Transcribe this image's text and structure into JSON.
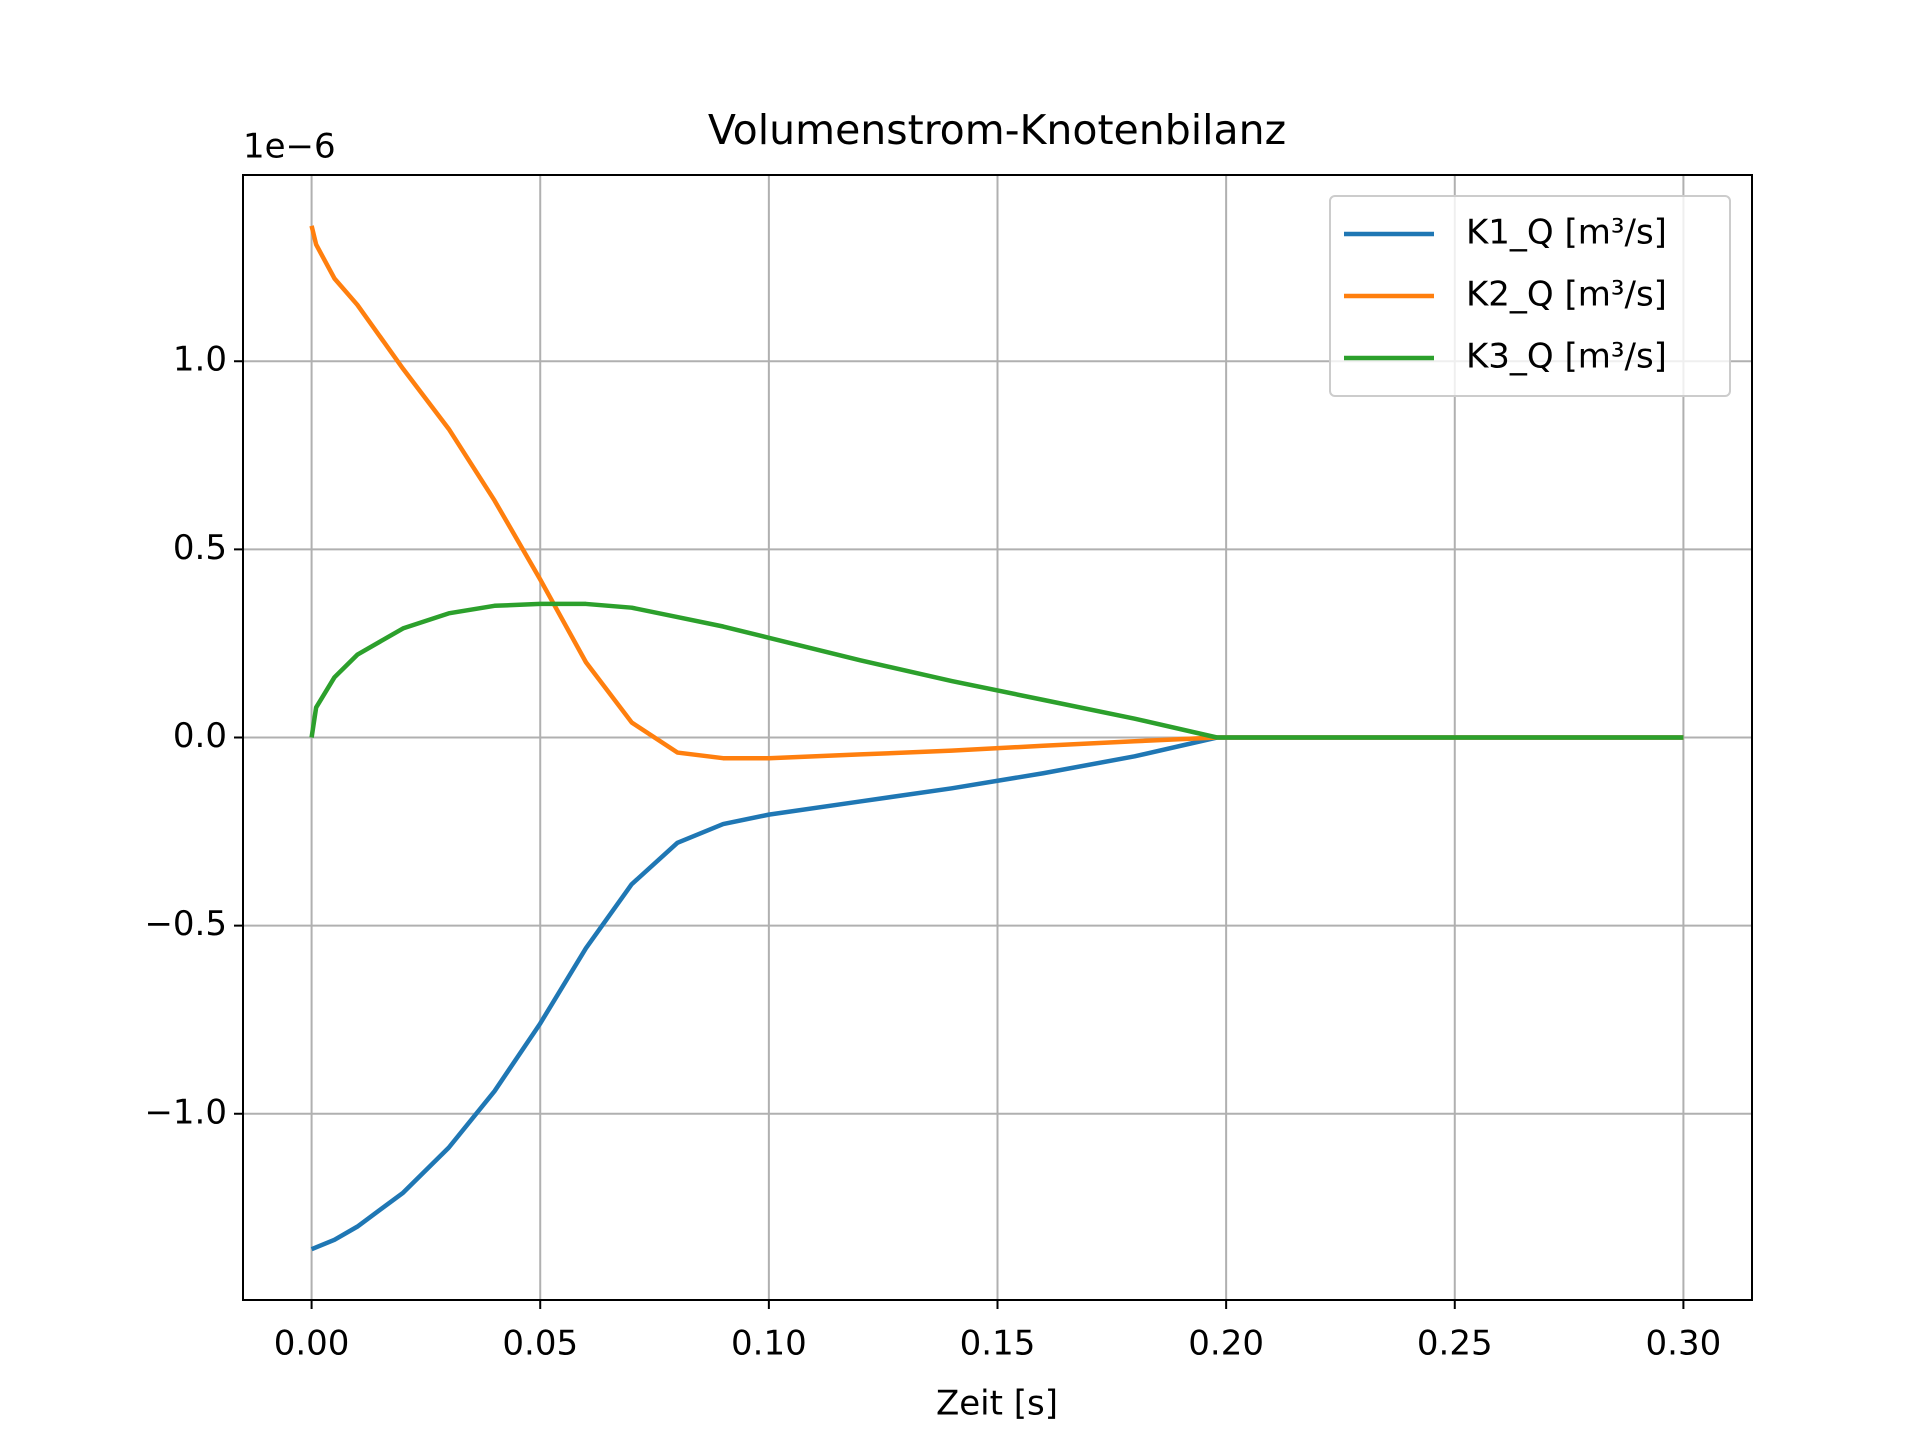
{
  "chart_data": {
    "type": "line",
    "title": "Volumenstrom-Knotenbilanz",
    "x_label": "Zeit [s]",
    "y_offset_label": "1e−6",
    "x": [
      0,
      0.001,
      0.005,
      0.01,
      0.02,
      0.03,
      0.04,
      0.05,
      0.06,
      0.07,
      0.08,
      0.09,
      0.1,
      0.12,
      0.14,
      0.16,
      0.18,
      0.198,
      0.22,
      0.25,
      0.3
    ],
    "series": [
      {
        "name": "K1_Q [m³/s]",
        "color": "#1f77b4",
        "values": [
          -1.36,
          -1.355,
          -1.335,
          -1.3,
          -1.21,
          -1.09,
          -0.94,
          -0.76,
          -0.56,
          -0.39,
          -0.28,
          -0.23,
          -0.205,
          -0.17,
          -0.135,
          -0.095,
          -0.05,
          0,
          0,
          0,
          0
        ]
      },
      {
        "name": "K2_Q [m³/s]",
        "color": "#ff7f0e",
        "values": [
          1.36,
          1.31,
          1.22,
          1.15,
          0.98,
          0.82,
          0.63,
          0.42,
          0.2,
          0.04,
          -0.04,
          -0.055,
          -0.055,
          -0.045,
          -0.035,
          -0.022,
          -0.01,
          0,
          0,
          0,
          0
        ]
      },
      {
        "name": "K3_Q [m³/s]",
        "color": "#2ca02c",
        "values": [
          0,
          0.08,
          0.16,
          0.22,
          0.29,
          0.33,
          0.35,
          0.355,
          0.355,
          0.345,
          0.32,
          0.295,
          0.265,
          0.205,
          0.15,
          0.1,
          0.05,
          0,
          0,
          0,
          0
        ]
      }
    ],
    "xlim": [
      -0.015,
      0.315
    ],
    "xticks": [
      {
        "value": 0,
        "label": "0.00"
      },
      {
        "value": 0.05,
        "label": "0.05"
      },
      {
        "value": 0.1,
        "label": "0.10"
      },
      {
        "value": 0.15,
        "label": "0.15"
      },
      {
        "value": 0.2,
        "label": "0.20"
      },
      {
        "value": 0.25,
        "label": "0.25"
      },
      {
        "value": 0.3,
        "label": "0.30"
      }
    ],
    "ylim": [
      -1.495,
      1.495
    ],
    "yticks": [
      {
        "value": -1,
        "label": "−1.0"
      },
      {
        "value": -0.5,
        "label": "−0.5"
      },
      {
        "value": 0,
        "label": "0.0"
      },
      {
        "value": 0.5,
        "label": "0.5"
      },
      {
        "value": 1,
        "label": "1.0"
      }
    ],
    "grid": true,
    "legend": "upper right"
  }
}
